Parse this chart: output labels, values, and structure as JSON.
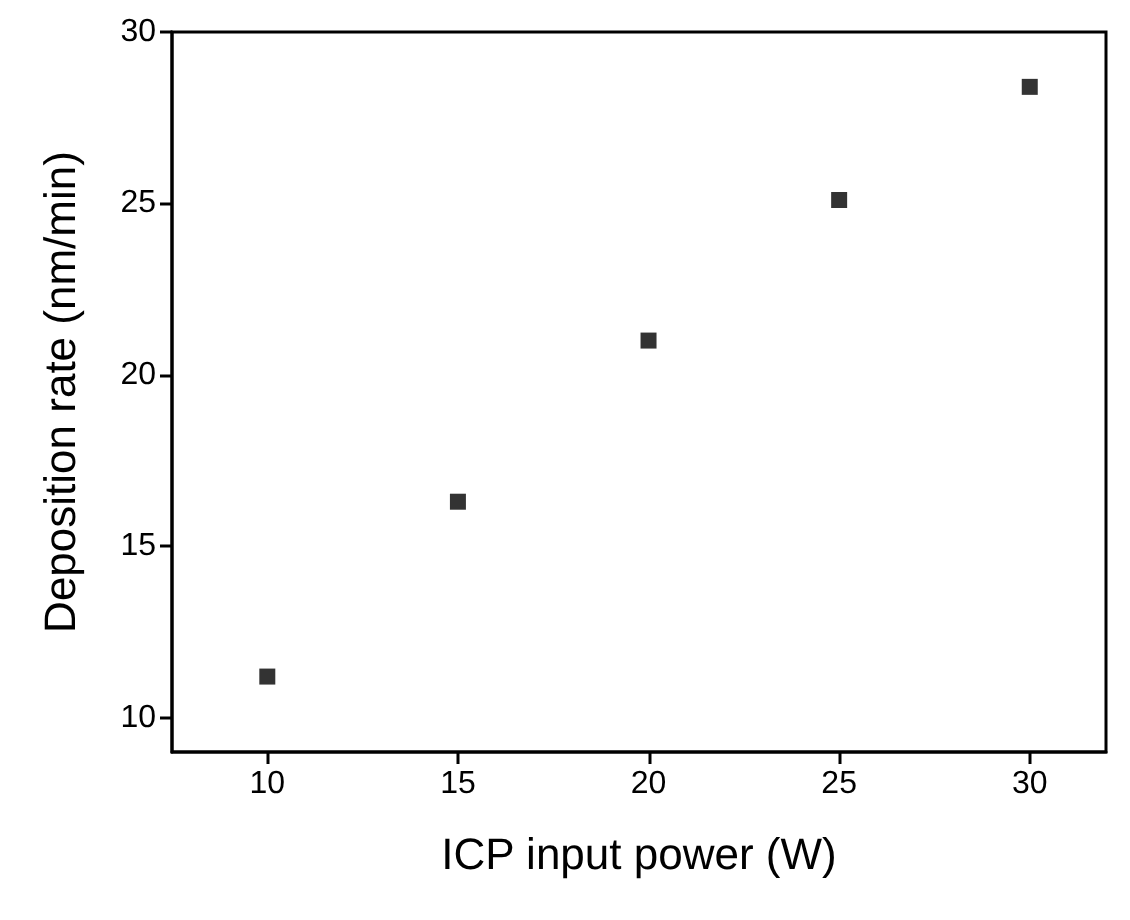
{
  "chart_data": {
    "type": "scatter",
    "xlabel": "ICP input power (W)",
    "ylabel": "Deposition rate (nm/min)",
    "x": [
      10,
      15,
      20,
      25,
      30
    ],
    "values": [
      11.2,
      16.3,
      21.0,
      25.1,
      28.4
    ],
    "color": "#000000",
    "marker": "square",
    "xlim": [
      7.5,
      32
    ],
    "xticks": [
      10,
      15,
      20,
      25,
      30
    ],
    "ylim": [
      9,
      30
    ],
    "yticks": [
      10,
      15,
      20,
      25,
      30
    ],
    "grid": false
  }
}
